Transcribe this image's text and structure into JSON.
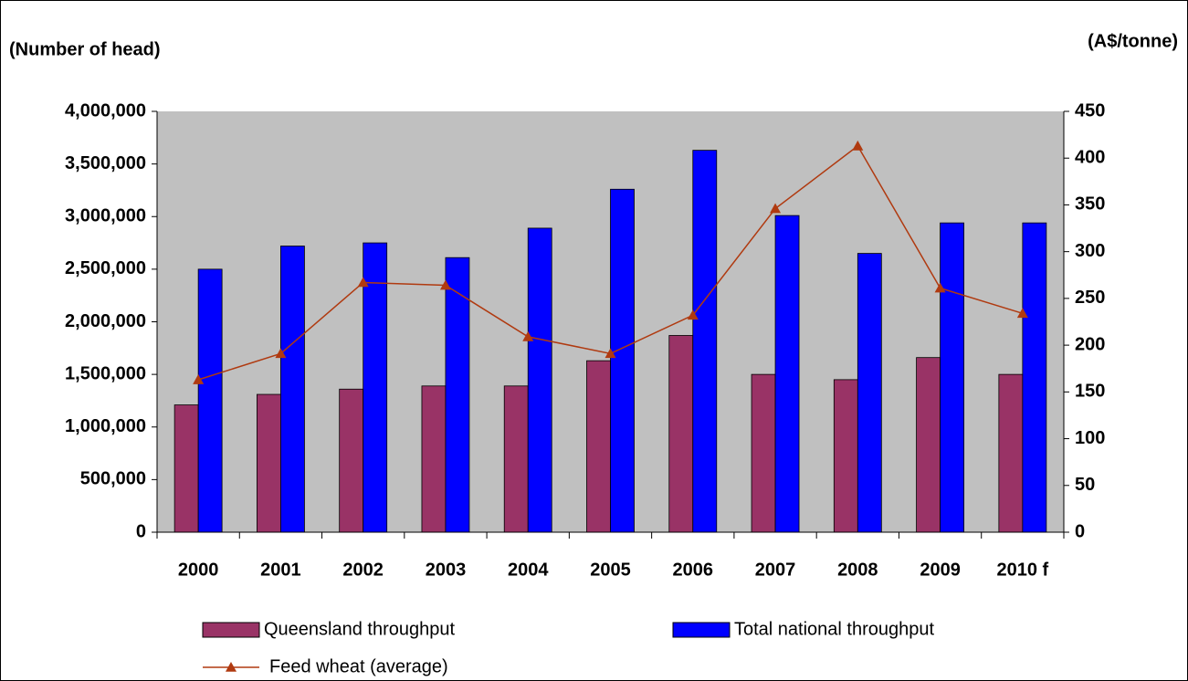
{
  "chart_data": {
    "type": "bar",
    "y_label": "(Number of head)",
    "y2_label": "(A$/tonne)",
    "categories": [
      "2000",
      "2001",
      "2002",
      "2003",
      "2004",
      "2005",
      "2006",
      "2007",
      "2008",
      "2009",
      "2010 f"
    ],
    "series": [
      {
        "name": "Queensland throughput",
        "color": "#993366",
        "type": "bar",
        "values": [
          1210000,
          1310000,
          1360000,
          1390000,
          1390000,
          1630000,
          1870000,
          1500000,
          1450000,
          1660000,
          1500000
        ]
      },
      {
        "name": "Total national throughput",
        "color": "#0000ff",
        "type": "bar",
        "values": [
          2500000,
          2720000,
          2750000,
          2610000,
          2890000,
          3260000,
          3630000,
          3010000,
          2650000,
          2940000,
          2940000
        ]
      },
      {
        "name": "Feed wheat (average)",
        "color": "#b03a10",
        "type": "line",
        "axis": "y2",
        "values": [
          163,
          191,
          267,
          264,
          209,
          191,
          232,
          346,
          413,
          261,
          234
        ]
      }
    ],
    "ylim": [
      0,
      4000000
    ],
    "yticks": [
      {
        "value": 0,
        "label": "0"
      },
      {
        "value": 500000,
        "label": "500,000"
      },
      {
        "value": 1000000,
        "label": "1,000,000"
      },
      {
        "value": 1500000,
        "label": "1,500,000"
      },
      {
        "value": 2000000,
        "label": "2,000,000"
      },
      {
        "value": 2500000,
        "label": "2,500,000"
      },
      {
        "value": 3000000,
        "label": "3,000,000"
      },
      {
        "value": 3500000,
        "label": "3,500,000"
      },
      {
        "value": 4000000,
        "label": "4,000,000"
      }
    ],
    "y2lim": [
      0,
      450
    ],
    "y2ticks": [
      0,
      50,
      100,
      150,
      200,
      250,
      300,
      350,
      400,
      450
    ],
    "plot_background": "#c0c0c0",
    "grid": false
  }
}
